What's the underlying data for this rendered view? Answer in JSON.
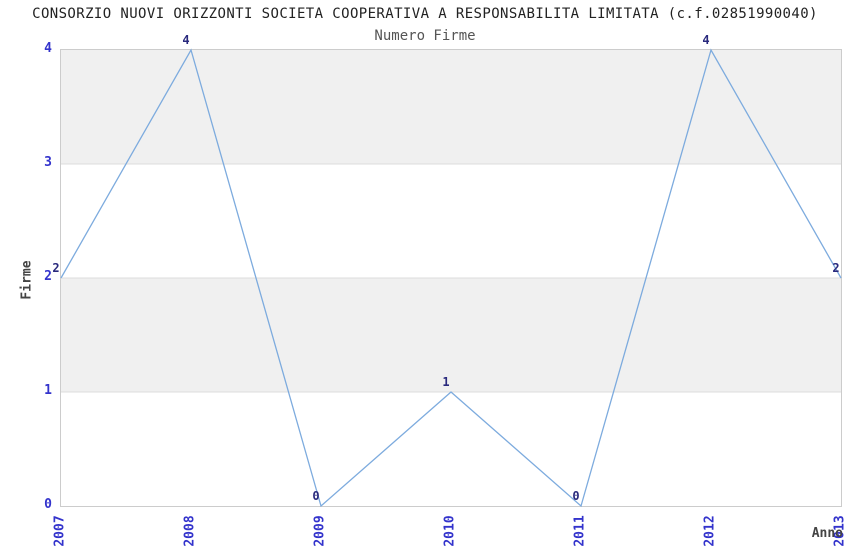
{
  "header": {
    "title": "CONSORZIO NUOVI ORIZZONTI SOCIETA COOPERATIVA A RESPONSABILITA LIMITATA (c.f.02851990040)"
  },
  "chart_data": {
    "type": "line",
    "title": "Numero Firme",
    "xlabel": "Anno",
    "ylabel": "Firme",
    "categories": [
      "2007",
      "2008",
      "2009",
      "2010",
      "2011",
      "2012",
      "2013"
    ],
    "series": [
      {
        "name": "Firme",
        "values": [
          2,
          4,
          0,
          1,
          0,
          4,
          2
        ]
      }
    ],
    "ylim": [
      0,
      4
    ],
    "yticks": [
      0,
      1,
      2,
      3,
      4
    ],
    "grid": true,
    "legend": "none",
    "data_labels": true,
    "colors": {
      "line": "#7dabde",
      "tick_label": "#3333cc",
      "value_label": "#29297d",
      "band_fill": "#f0f0f0",
      "grid_line": "#dddddd",
      "plot_border": "#cccccc",
      "title_text": "#222222",
      "subtitle_text": "#555555",
      "axis_label_text": "#444444"
    }
  }
}
